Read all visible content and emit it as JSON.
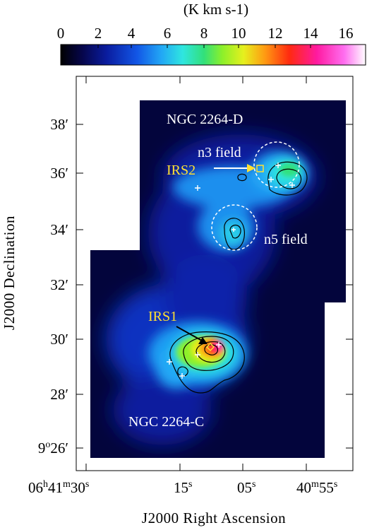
{
  "colorbar": {
    "unit_label": "(K km s-1)",
    "ticks": [
      "0",
      "2",
      "4",
      "6",
      "8",
      "10",
      "12",
      "14",
      "16"
    ],
    "colors": [
      "#000000",
      "#06064a",
      "#0a1c9e",
      "#1256e6",
      "#22a7f5",
      "#2fe6e0",
      "#32e07a",
      "#8cf02a",
      "#e6f01e",
      "#ff9a12",
      "#ff2a10",
      "#ff1aa0",
      "#ff6ef0",
      "#ffffff"
    ]
  },
  "axes": {
    "x_title": "J2000 Right Ascension",
    "y_title": "J2000 Declination",
    "x_ticks": [
      {
        "main": "06",
        "sup1": "h",
        "mid": "41",
        "sup2": "m",
        "tail": "30",
        "sup3": "s"
      },
      {
        "main": "15",
        "sup1": "s",
        "mid": "",
        "sup2": "",
        "tail": "",
        "sup3": ""
      },
      {
        "main": "05",
        "sup1": "s",
        "mid": "",
        "sup2": "",
        "tail": "",
        "sup3": ""
      },
      {
        "main": "40",
        "sup1": "m",
        "mid": "55",
        "sup2": "s",
        "tail": "",
        "sup3": ""
      }
    ],
    "y_ticks": [
      "38′",
      "36′",
      "34′",
      "32′",
      "30′",
      "28′"
    ],
    "y_tick_last": {
      "main": "9",
      "sup": "o",
      "tail": "26′"
    }
  },
  "labels": {
    "ngc_d": "NGC 2264-D",
    "n3_field": "n3 field",
    "irs2": "IRS2",
    "n5_field": "n5 field",
    "irs1": "IRS1",
    "ngc_c": "NGC 2264-C"
  },
  "colors": {
    "highlight_label": "#ffe033",
    "white_label": "#ffffff"
  }
}
